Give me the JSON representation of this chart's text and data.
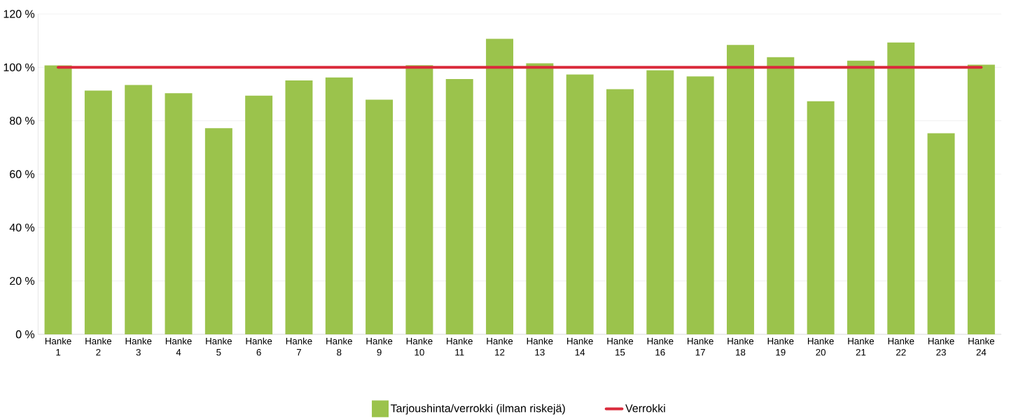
{
  "chart_data": {
    "type": "bar",
    "categories": [
      "Hanke 1",
      "Hanke 2",
      "Hanke 3",
      "Hanke 4",
      "Hanke 5",
      "Hanke 6",
      "Hanke 7",
      "Hanke 8",
      "Hanke 9",
      "Hanke 10",
      "Hanke 11",
      "Hanke 12",
      "Hanke 13",
      "Hanke 14",
      "Hanke 15",
      "Hanke 16",
      "Hanke 17",
      "Hanke 18",
      "Hanke 19",
      "Hanke 20",
      "Hanke 21",
      "Hanke 22",
      "Hanke 23",
      "Hanke 24"
    ],
    "series": [
      {
        "name": "Tarjoushinta/verrokki (ilman riskejä)",
        "color": "#9bc34c",
        "values": [
          100.7,
          91.3,
          93.4,
          90.3,
          77.2,
          89.4,
          95.1,
          96.2,
          87.9,
          100.8,
          95.6,
          110.7,
          101.5,
          97.3,
          91.8,
          98.9,
          96.6,
          108.4,
          103.8,
          87.3,
          102.5,
          109.3,
          75.3,
          101.0
        ]
      },
      {
        "name": "Verrokki",
        "type": "line",
        "color": "#da2a3b",
        "values": [
          100,
          100,
          100,
          100,
          100,
          100,
          100,
          100,
          100,
          100,
          100,
          100,
          100,
          100,
          100,
          100,
          100,
          100,
          100,
          100,
          100,
          100,
          100,
          100
        ]
      }
    ],
    "ylim": [
      0,
      120
    ],
    "yticks": [
      {
        "value": 0,
        "label": "0 %"
      },
      {
        "value": 20,
        "label": "20 %"
      },
      {
        "value": 40,
        "label": "40 %"
      },
      {
        "value": 60,
        "label": "60 %"
      },
      {
        "value": 80,
        "label": "80 %"
      },
      {
        "value": 100,
        "label": "100 %"
      },
      {
        "value": 120,
        "label": "120 %"
      }
    ],
    "grid": "y",
    "legend": "bottom"
  }
}
